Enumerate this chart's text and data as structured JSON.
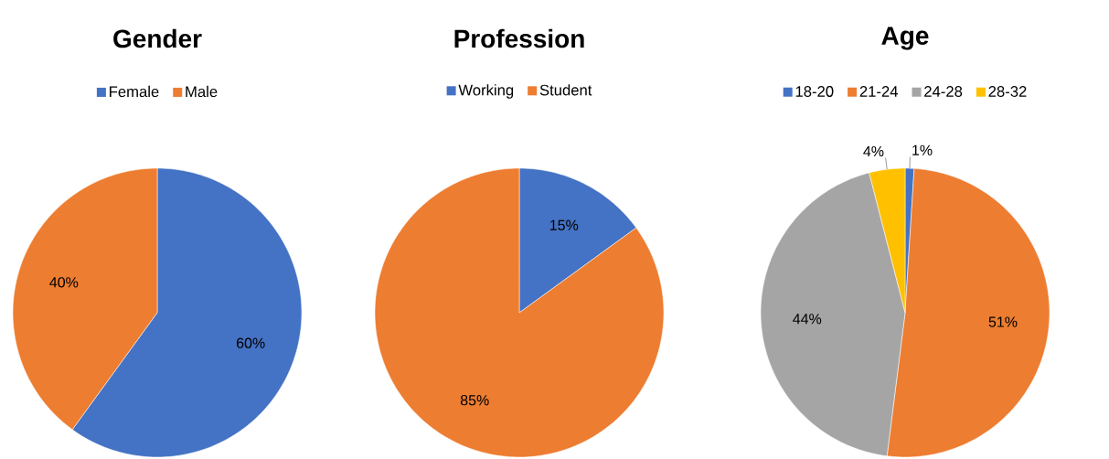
{
  "chart_data": [
    {
      "type": "pie",
      "title": "Gender",
      "categories": [
        "Female",
        "Male"
      ],
      "values": [
        60,
        40
      ],
      "colors": [
        "#4472c4",
        "#ed7d31"
      ],
      "value_labels": [
        "60%",
        "40%"
      ],
      "legend": "top"
    },
    {
      "type": "pie",
      "title": "Profession",
      "categories": [
        "Working",
        "Student"
      ],
      "values": [
        15,
        85
      ],
      "colors": [
        "#4472c4",
        "#ed7d31"
      ],
      "value_labels": [
        "15%",
        "85%"
      ],
      "legend": "top"
    },
    {
      "type": "pie",
      "title": "Age",
      "categories": [
        "18-20",
        "21-24",
        "24-28",
        "28-32"
      ],
      "values": [
        1,
        51,
        44,
        4
      ],
      "colors": [
        "#4472c4",
        "#ed7d31",
        "#a5a5a5",
        "#ffc000"
      ],
      "value_labels": [
        "1%",
        "51%",
        "44%",
        "4%"
      ],
      "legend": "top"
    }
  ]
}
